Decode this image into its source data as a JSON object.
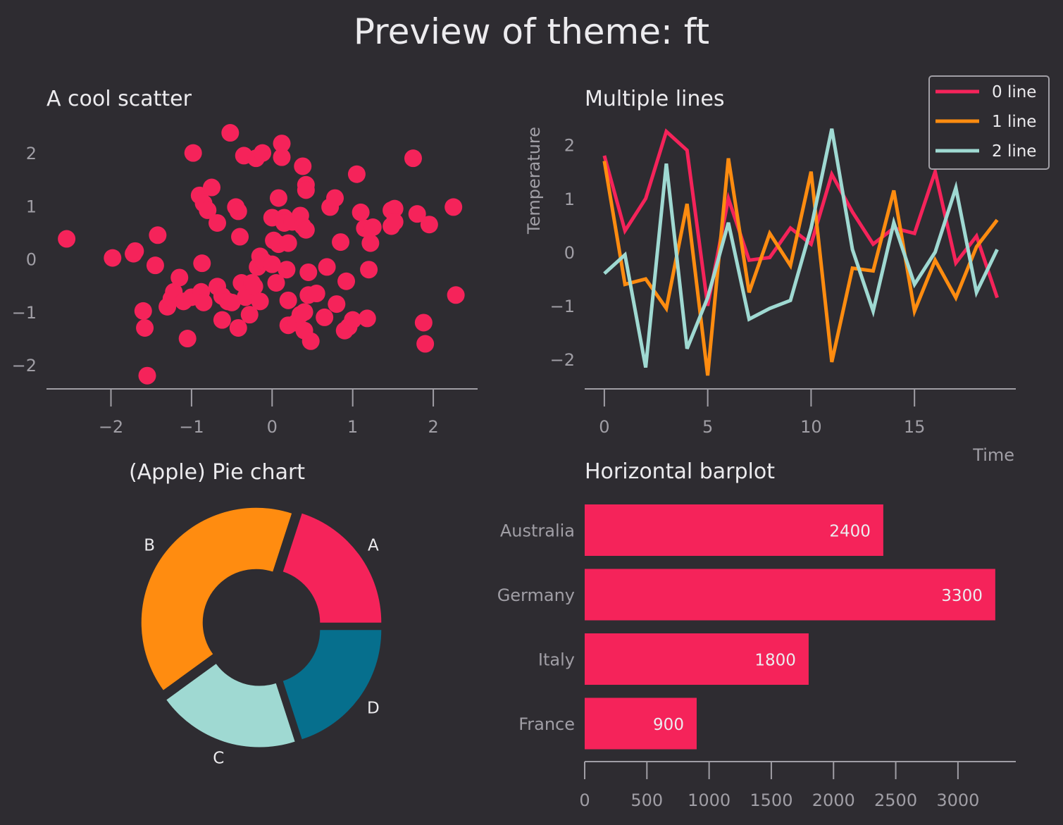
{
  "figure": {
    "title": "Preview of theme: ft"
  },
  "colors": {
    "background": "#2e2c31",
    "text": "#ecebee",
    "muted": "#a09ea5",
    "series": [
      "#f5235a",
      "#ff8c10",
      "#9fd9d2",
      "#066f8d"
    ]
  },
  "chart_data": [
    {
      "id": "scatter",
      "type": "scatter",
      "title": "A cool scatter",
      "xlim": [
        -2.8,
        2.55
      ],
      "ylim": [
        -2.45,
        2.6
      ],
      "xticks": [
        -2,
        -1,
        0,
        1,
        2
      ],
      "xtick_labels": [
        "−2",
        "−1",
        "0",
        "1",
        "2"
      ],
      "yticks": [
        -2,
        -1,
        0,
        1,
        2
      ],
      "ytick_labels": [
        "−2",
        "−1",
        "0",
        "1",
        "2"
      ],
      "grid": false,
      "points": [
        [
          -2.55,
          0.38
        ],
        [
          -1.98,
          0.02
        ],
        [
          -1.72,
          0.1
        ],
        [
          -1.7,
          0.15
        ],
        [
          -1.6,
          -0.98
        ],
        [
          -1.58,
          -1.3
        ],
        [
          -1.55,
          -2.2
        ],
        [
          -1.45,
          -0.12
        ],
        [
          -1.42,
          0.45
        ],
        [
          -1.3,
          -0.9
        ],
        [
          -1.25,
          -0.75
        ],
        [
          -1.22,
          -0.62
        ],
        [
          -1.15,
          -0.35
        ],
        [
          -1.1,
          -0.8
        ],
        [
          -1.05,
          -1.5
        ],
        [
          -1.0,
          -0.72
        ],
        [
          -0.98,
          2.0
        ],
        [
          -0.9,
          1.2
        ],
        [
          -0.88,
          -0.62
        ],
        [
          -0.87,
          -0.08
        ],
        [
          -0.85,
          -0.82
        ],
        [
          -0.85,
          1.05
        ],
        [
          -0.8,
          0.92
        ],
        [
          -0.75,
          1.35
        ],
        [
          -0.68,
          0.68
        ],
        [
          -0.68,
          -0.52
        ],
        [
          -0.62,
          -0.7
        ],
        [
          -0.62,
          -1.15
        ],
        [
          -0.55,
          -0.8
        ],
        [
          -0.52,
          2.38
        ],
        [
          -0.5,
          -0.82
        ],
        [
          -0.45,
          0.98
        ],
        [
          -0.42,
          0.9
        ],
        [
          -0.42,
          -1.3
        ],
        [
          -0.4,
          0.42
        ],
        [
          -0.38,
          -0.45
        ],
        [
          -0.35,
          1.95
        ],
        [
          -0.35,
          -0.48
        ],
        [
          -0.33,
          -0.72
        ],
        [
          -0.3,
          -0.65
        ],
        [
          -0.28,
          -1.05
        ],
        [
          -0.25,
          -0.45
        ],
        [
          -0.22,
          -0.52
        ],
        [
          -0.2,
          1.9
        ],
        [
          -0.18,
          -0.15
        ],
        [
          -0.15,
          0.05
        ],
        [
          -0.15,
          -0.8
        ],
        [
          -0.12,
          2.0
        ],
        [
          -0.1,
          -0.05
        ],
        [
          0.0,
          -0.1
        ],
        [
          0.0,
          0.78
        ],
        [
          0.02,
          0.35
        ],
        [
          0.05,
          -0.45
        ],
        [
          0.08,
          0.28
        ],
        [
          0.08,
          1.15
        ],
        [
          0.12,
          2.18
        ],
        [
          0.12,
          1.92
        ],
        [
          0.15,
          0.78
        ],
        [
          0.15,
          0.68
        ],
        [
          0.18,
          -0.2
        ],
        [
          0.2,
          0.3
        ],
        [
          0.2,
          -0.78
        ],
        [
          0.2,
          -1.25
        ],
        [
          0.25,
          0.7
        ],
        [
          0.3,
          -1.2
        ],
        [
          0.35,
          -1.05
        ],
        [
          0.35,
          0.82
        ],
        [
          0.38,
          0.62
        ],
        [
          0.38,
          1.75
        ],
        [
          0.4,
          -1.0
        ],
        [
          0.4,
          -1.35
        ],
        [
          0.42,
          0.55
        ],
        [
          0.42,
          1.4
        ],
        [
          0.42,
          1.3
        ],
        [
          0.45,
          -0.68
        ],
        [
          0.45,
          -0.25
        ],
        [
          0.48,
          -1.55
        ],
        [
          0.55,
          -0.65
        ],
        [
          0.65,
          -1.1
        ],
        [
          0.68,
          -0.15
        ],
        [
          0.72,
          0.98
        ],
        [
          0.78,
          1.15
        ],
        [
          0.8,
          -0.85
        ],
        [
          0.85,
          0.32
        ],
        [
          0.9,
          -1.35
        ],
        [
          0.92,
          -0.42
        ],
        [
          0.95,
          -1.28
        ],
        [
          1.0,
          -1.15
        ],
        [
          1.05,
          1.6
        ],
        [
          1.1,
          0.88
        ],
        [
          1.15,
          0.58
        ],
        [
          1.18,
          -1.12
        ],
        [
          1.2,
          -0.2
        ],
        [
          1.22,
          0.3
        ],
        [
          1.25,
          0.6
        ],
        [
          1.48,
          0.92
        ],
        [
          1.48,
          0.62
        ],
        [
          1.52,
          0.95
        ],
        [
          1.52,
          0.7
        ],
        [
          1.75,
          1.9
        ],
        [
          1.8,
          0.85
        ],
        [
          1.88,
          -1.2
        ],
        [
          1.9,
          -1.6
        ],
        [
          1.95,
          0.65
        ],
        [
          2.25,
          0.98
        ],
        [
          2.28,
          -0.68
        ]
      ]
    },
    {
      "id": "lines",
      "type": "line",
      "title": "Multiple lines",
      "xlabel": "Time",
      "ylabel": "Temperature",
      "xlim": [
        -0.95,
        19.9
      ],
      "ylim": [
        -2.55,
        2.6
      ],
      "xticks": [
        0,
        5,
        10,
        15
      ],
      "xtick_labels": [
        "0",
        "5",
        "10",
        "15"
      ],
      "yticks": [
        -2,
        -1,
        0,
        1,
        2
      ],
      "ytick_labels": [
        "−2",
        "−1",
        "0",
        "1",
        "2"
      ],
      "legend": "top-right",
      "grid": false,
      "x": [
        0,
        1,
        2,
        3,
        4,
        5,
        6,
        7,
        8,
        9,
        10,
        11,
        12,
        13,
        14,
        15,
        16,
        17,
        18,
        19
      ],
      "series": [
        {
          "name": "0 line",
          "values": [
            1.8,
            0.4,
            1.0,
            2.25,
            1.9,
            -1.0,
            1.0,
            -0.15,
            -0.1,
            0.45,
            0.15,
            1.45,
            0.75,
            0.15,
            0.45,
            0.35,
            1.5,
            -0.2,
            0.3,
            -0.85
          ]
        },
        {
          "name": "1 line",
          "values": [
            1.7,
            -0.6,
            -0.5,
            -1.05,
            0.9,
            -2.3,
            1.75,
            -0.75,
            0.35,
            -0.25,
            1.5,
            -2.05,
            -0.3,
            -0.35,
            1.15,
            -1.1,
            -0.15,
            -0.85,
            0.1,
            0.6
          ]
        },
        {
          "name": "2 line",
          "values": [
            -0.4,
            -0.05,
            -2.15,
            1.65,
            -1.8,
            -0.85,
            0.55,
            -1.25,
            -1.05,
            -0.9,
            0.45,
            2.3,
            0.05,
            -1.1,
            0.55,
            -0.6,
            0.0,
            1.2,
            -0.75,
            0.05
          ]
        }
      ]
    },
    {
      "id": "pie",
      "type": "pie",
      "title": "(Apple) Pie chart",
      "labels": [
        "A",
        "B",
        "C",
        "D"
      ],
      "values": [
        20,
        40,
        20,
        20
      ],
      "explode": [
        0.05,
        0.05,
        0.05,
        0.05
      ],
      "donut": true
    },
    {
      "id": "bars",
      "type": "bar",
      "orientation": "horizontal",
      "title": "Horizontal barplot",
      "categories": [
        "Australia",
        "Germany",
        "Italy",
        "France"
      ],
      "values": [
        2400,
        3300,
        1800,
        900
      ],
      "data_labels": [
        "2400",
        "3300",
        "1800",
        "900"
      ],
      "xlim": [
        0,
        3465
      ],
      "xticks": [
        0,
        500,
        1000,
        1500,
        2000,
        2500,
        3000
      ],
      "xtick_labels": [
        "0",
        "500",
        "1000",
        "1500",
        "2000",
        "2500",
        "3000"
      ],
      "grid": false
    }
  ]
}
